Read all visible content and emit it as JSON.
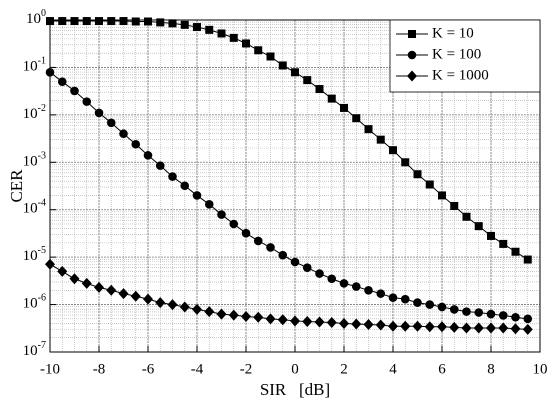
{
  "chart_data": {
    "type": "line",
    "xlabel": "SIR   [dB]",
    "ylabel": "CER",
    "yscale": "log",
    "grid": true,
    "minor_grid": true,
    "legend": "upper right",
    "x": [
      -10,
      -9.5,
      -9,
      -8.5,
      -8,
      -7.5,
      -7,
      -6.5,
      -6,
      -5.5,
      -5,
      -4.5,
      -4,
      -3.5,
      -3,
      -2.5,
      -2,
      -1.5,
      -1,
      -0.5,
      0,
      0.5,
      1,
      1.5,
      2,
      2.5,
      3,
      3.5,
      4,
      4.5,
      5,
      5.5,
      6,
      6.5,
      7,
      7.5,
      8,
      8.5,
      9,
      9.5
    ],
    "series": [
      {
        "name": "K = 10",
        "color": "#000000",
        "marker": "square",
        "values": [
          0.95,
          0.95,
          0.95,
          0.95,
          0.95,
          0.95,
          0.95,
          0.93,
          0.93,
          0.89,
          0.85,
          0.79,
          0.71,
          0.62,
          0.52,
          0.42,
          0.32,
          0.23,
          0.17,
          0.11,
          0.079,
          0.054,
          0.035,
          0.022,
          0.014,
          0.0085,
          0.005,
          0.003,
          0.0018,
          0.001,
          0.00056,
          0.00034,
          0.0002,
          0.00012,
          7.1e-05,
          4.5e-05,
          2.8e-05,
          1.9e-05,
          1.3e-05,
          8.9e-06
        ]
      },
      {
        "name": "K = 100",
        "color": "#000000",
        "marker": "circle",
        "values": [
          0.079,
          0.05,
          0.032,
          0.019,
          0.011,
          0.0068,
          0.004,
          0.0024,
          0.0014,
          0.00085,
          0.0005,
          0.00032,
          0.0002,
          0.00013,
          7.9e-05,
          5e-05,
          3.2e-05,
          2.2e-05,
          1.6e-05,
          1.1e-05,
          7.9e-06,
          6e-06,
          4.5e-06,
          3.5e-06,
          2.8e-06,
          2.4e-06,
          2e-06,
          1.7e-06,
          1.4e-06,
          1.3e-06,
          1.1e-06,
          1e-06,
          8.9e-07,
          7.9e-07,
          7.1e-07,
          6.8e-07,
          6.3e-07,
          5.9e-07,
          5.4e-07,
          5e-07
        ]
      },
      {
        "name": "K = 1000",
        "color": "#000000",
        "marker": "diamond",
        "values": [
          7.1e-06,
          5e-06,
          3.5e-06,
          2.8e-06,
          2.3e-06,
          2e-06,
          1.7e-06,
          1.5e-06,
          1.3e-06,
          1.1e-06,
          1e-06,
          8.9e-07,
          7.9e-07,
          7.1e-07,
          6.3e-07,
          6e-07,
          5.6e-07,
          5.4e-07,
          5e-07,
          4.8e-07,
          4.5e-07,
          4.4e-07,
          4.3e-07,
          4.2e-07,
          4e-07,
          3.9e-07,
          3.8e-07,
          3.7e-07,
          3.5e-07,
          3.5e-07,
          3.5e-07,
          3.4e-07,
          3.4e-07,
          3.3e-07,
          3.2e-07,
          3.2e-07,
          3.2e-07,
          3.2e-07,
          3.1e-07,
          3e-07
        ]
      }
    ],
    "xlim": [
      -10,
      10
    ],
    "xticks": [
      -10,
      -8,
      -6,
      -4,
      -2,
      0,
      2,
      4,
      6,
      8,
      10
    ],
    "ylim": [
      1e-07,
      1
    ],
    "yticks": [
      {
        "value": 1e-07,
        "label": "10^-7"
      },
      {
        "value": 1e-06,
        "label": "10^-6"
      },
      {
        "value": 1e-05,
        "label": "10^-5"
      },
      {
        "value": 0.0001,
        "label": "10^-4"
      },
      {
        "value": 0.001,
        "label": "10^-3"
      },
      {
        "value": 0.01,
        "label": "10^-2"
      },
      {
        "value": 0.1,
        "label": "10^-1"
      },
      {
        "value": 1,
        "label": "10^0"
      }
    ]
  }
}
